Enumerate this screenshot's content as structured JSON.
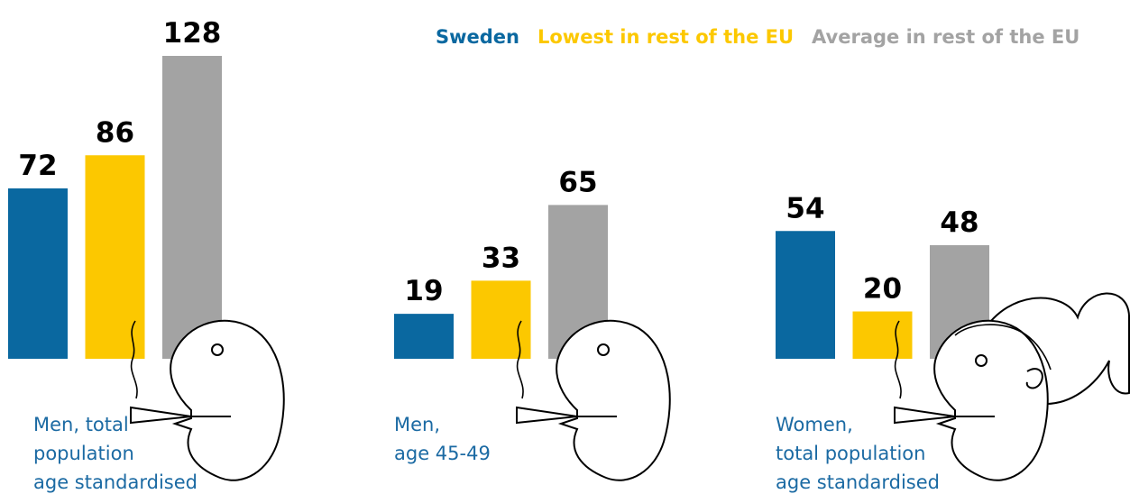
{
  "chart_data": {
    "type": "bar",
    "categories": [
      [
        "Men, total",
        "population",
        "age standardised"
      ],
      [
        "Men,",
        "age 45-49"
      ],
      [
        "Women,",
        "total population",
        "age standardised"
      ]
    ],
    "series": [
      {
        "name": "Sweden",
        "color": "#0a68a0",
        "values": [
          72,
          19,
          54
        ]
      },
      {
        "name": "Lowest in rest of the EU",
        "color": "#fcc800",
        "values": [
          86,
          33,
          20
        ]
      },
      {
        "name": "Average in rest of the EU",
        "color": "#a3a3a3",
        "values": [
          128,
          65,
          48
        ]
      }
    ]
  }
}
